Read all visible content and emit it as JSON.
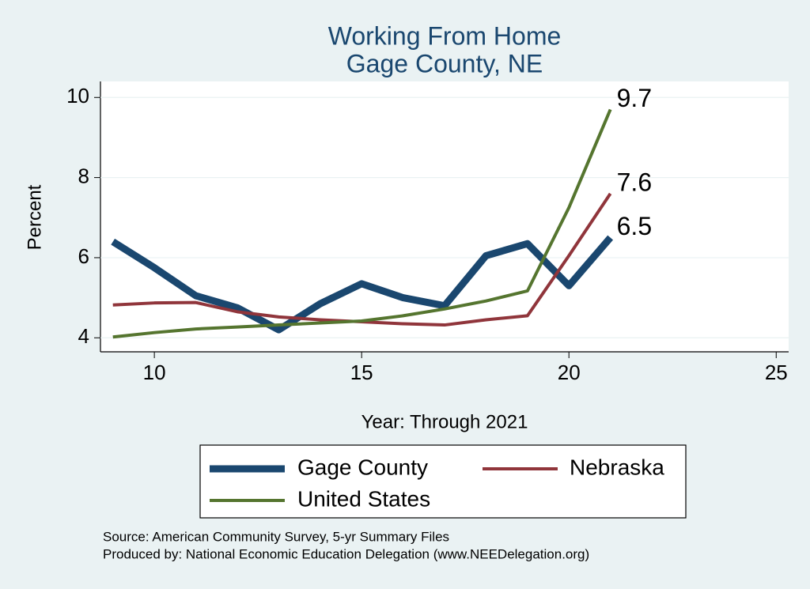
{
  "chart_data": {
    "type": "line",
    "title": "Working From Home",
    "subtitle": "Gage County, NE",
    "x_label": "Year: Through 2021",
    "y_label": "Percent",
    "x": [
      9,
      10,
      11,
      12,
      13,
      14,
      15,
      16,
      17,
      18,
      19,
      20,
      21
    ],
    "series": [
      {
        "name": "Gage County",
        "color": "#1a476f",
        "width": 9,
        "values": [
          6.4,
          5.75,
          5.05,
          4.75,
          4.2,
          4.85,
          5.35,
          5.0,
          4.8,
          6.05,
          6.35,
          5.3,
          6.5
        ],
        "end_label": true
      },
      {
        "name": "Nebraska",
        "color": "#90353b",
        "width": 4,
        "values": [
          4.82,
          4.87,
          4.88,
          4.65,
          4.52,
          4.45,
          4.4,
          4.35,
          4.32,
          4.45,
          4.55,
          6.05,
          7.6
        ],
        "end_label": true
      },
      {
        "name": "United States",
        "color": "#55752f",
        "width": 4,
        "values": [
          4.02,
          4.13,
          4.22,
          4.27,
          4.32,
          4.37,
          4.42,
          4.55,
          4.72,
          4.92,
          5.17,
          7.25,
          9.7
        ],
        "end_label": true
      }
    ],
    "xlim": [
      8.7,
      25.3
    ],
    "xticks": [
      10,
      15,
      20,
      25
    ],
    "ylim": [
      3.65,
      10.4
    ],
    "yticks": [
      4,
      6,
      8,
      10
    ],
    "grid": true,
    "notes": [
      "Source: American Community Survey, 5-yr Summary Files",
      "Produced by: National Economic Education Delegation (www.NEEDelegation.org)"
    ]
  }
}
